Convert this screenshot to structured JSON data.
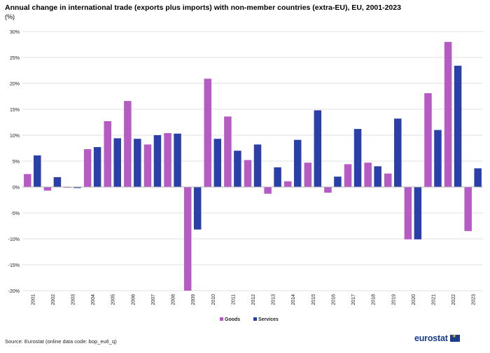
{
  "header": {
    "title": "Annual change in international trade (exports plus imports) with non-member countries (extra-EU), EU, 2001-2023",
    "unit": "(%)"
  },
  "footer": {
    "source": "Source: Eurostat (online data code: bop_eu6_q)",
    "logo_text": "eurostat"
  },
  "colors": {
    "goods": "#b65ac4",
    "services": "#2a3fa8",
    "grid": "#d9d9d9",
    "axis": "#b0b0b0"
  },
  "chart_data": {
    "type": "bar",
    "title": "Annual change in international trade (exports plus imports) with non-member countries (extra-EU), EU, 2001-2023",
    "ylabel": "(%)",
    "ylim": [
      -20,
      30
    ],
    "yticks": [
      -20,
      -15,
      -10,
      -5,
      0,
      5,
      10,
      15,
      20,
      25,
      30
    ],
    "ytick_labels": [
      "-20%",
      "-15%",
      "-10%",
      "-5%",
      "0%",
      "5%",
      "10%",
      "15%",
      "20%",
      "25%",
      "30%"
    ],
    "grid": true,
    "legend_position": "bottom-center",
    "categories": [
      "2001",
      "2002",
      "2003",
      "2004",
      "2005",
      "2006",
      "2007",
      "2008",
      "2009",
      "2010",
      "2011",
      "2012",
      "2013",
      "2014",
      "2015",
      "2016",
      "2017",
      "2018",
      "2019",
      "2020",
      "2021",
      "2022",
      "2023"
    ],
    "series": [
      {
        "name": "Goods",
        "values": [
          2.5,
          -0.7,
          0.0,
          7.3,
          12.7,
          16.6,
          8.2,
          10.4,
          -20.0,
          20.9,
          13.6,
          5.2,
          -1.3,
          1.1,
          4.7,
          -1.1,
          4.4,
          4.7,
          2.6,
          -10.1,
          18.1,
          28.0,
          -8.5
        ]
      },
      {
        "name": "Services",
        "values": [
          6.1,
          1.9,
          -0.2,
          7.7,
          9.4,
          9.3,
          10.0,
          10.3,
          -8.2,
          9.3,
          7.0,
          8.2,
          3.8,
          9.1,
          14.8,
          2.0,
          11.2,
          4.0,
          13.2,
          -10.1,
          11.0,
          23.4,
          3.6
        ]
      }
    ]
  }
}
